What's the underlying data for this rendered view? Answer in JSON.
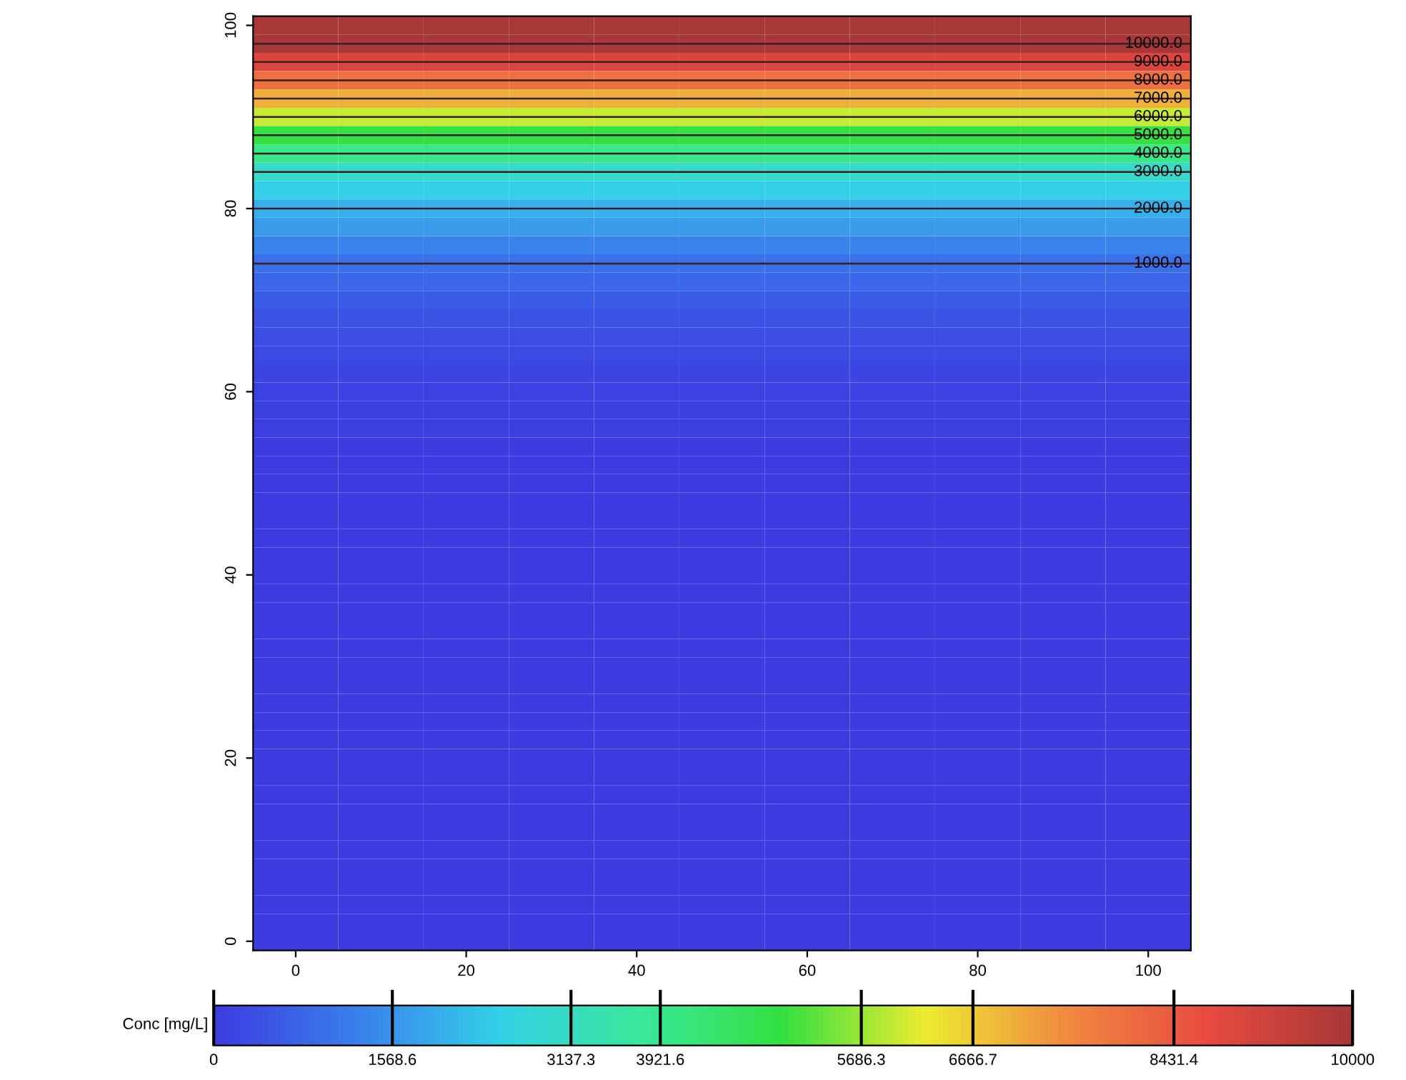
{
  "chart_data": {
    "type": "heatmap",
    "categories": [
      "0",
      null,
      "20",
      null,
      "40",
      null,
      "60",
      null,
      "80",
      null,
      "100"
    ],
    "y_categories": [
      "100",
      null,
      null,
      null,
      null,
      null,
      null,
      null,
      null,
      null,
      "80",
      null,
      null,
      null,
      null,
      null,
      null,
      null,
      null,
      null,
      "60",
      null,
      null,
      null,
      null,
      null,
      null,
      null,
      null,
      null,
      "40",
      null,
      null,
      null,
      null,
      null,
      null,
      null,
      null,
      null,
      "20",
      null,
      null,
      null,
      null,
      null,
      null,
      null,
      null,
      null,
      "0"
    ],
    "cells": [
      [
        10000,
        10000,
        10000,
        10000,
        10000,
        10000,
        10000,
        10000,
        10000,
        10000,
        10000
      ],
      [
        10000,
        10000,
        10000,
        10000,
        10000,
        10000,
        10000,
        10000,
        10000,
        10000,
        10000
      ],
      [
        9000,
        9000,
        9000,
        9000,
        9000,
        9000,
        9000,
        9000,
        9000,
        9000,
        9000
      ],
      [
        8000,
        8000,
        8000,
        8000,
        8000,
        8000,
        8000,
        8000,
        8000,
        8000,
        8000
      ],
      [
        7000,
        7000,
        7000,
        7000,
        7000,
        7000,
        7000,
        7000,
        7000,
        7000,
        7000
      ],
      [
        6000,
        6000,
        6000,
        6000,
        6000,
        6000,
        6000,
        6000,
        6000,
        6000,
        6000
      ],
      [
        5000,
        5000,
        5000,
        5000,
        5000,
        5000,
        5000,
        5000,
        5000,
        5000,
        5000
      ],
      [
        4000,
        4000,
        4000,
        4000,
        4000,
        4000,
        4000,
        4000,
        4000,
        4000,
        4000
      ],
      [
        3000,
        3000,
        3000,
        3000,
        3000,
        3000,
        3000,
        3000,
        3000,
        3000,
        3000
      ],
      [
        2500,
        2500,
        2500,
        2500,
        2500,
        2500,
        2500,
        2500,
        2500,
        2500,
        2500
      ],
      [
        2000,
        2000,
        2000,
        2000,
        2000,
        2000,
        2000,
        2000,
        2000,
        2000,
        2000
      ],
      [
        1700,
        1700,
        1700,
        1700,
        1700,
        1700,
        1700,
        1700,
        1700,
        1700,
        1700
      ],
      [
        1300,
        1300,
        1300,
        1300,
        1300,
        1300,
        1300,
        1300,
        1300,
        1300,
        1300
      ],
      [
        1000,
        1000,
        1000,
        1000,
        1000,
        1000,
        1000,
        1000,
        1000,
        1000,
        1000
      ],
      [
        800,
        800,
        800,
        800,
        800,
        800,
        800,
        800,
        800,
        800,
        800
      ],
      [
        600,
        600,
        600,
        600,
        600,
        600,
        600,
        600,
        600,
        600,
        600
      ],
      [
        450,
        450,
        450,
        450,
        450,
        450,
        450,
        450,
        450,
        450,
        450
      ],
      [
        350,
        350,
        350,
        350,
        350,
        350,
        350,
        350,
        350,
        350,
        350
      ],
      [
        250,
        250,
        250,
        250,
        250,
        250,
        250,
        250,
        250,
        250,
        250
      ],
      [
        180,
        180,
        180,
        180,
        180,
        180,
        180,
        180,
        180,
        180,
        180
      ],
      [
        120,
        120,
        120,
        120,
        120,
        120,
        120,
        120,
        120,
        120,
        120
      ],
      [
        80,
        80,
        80,
        80,
        80,
        80,
        80,
        80,
        80,
        80,
        80
      ],
      [
        40,
        40,
        40,
        40,
        40,
        40,
        40,
        40,
        40,
        40,
        40
      ],
      [
        20,
        20,
        20,
        20,
        20,
        20,
        20,
        20,
        20,
        20,
        20
      ],
      [
        0,
        0,
        0,
        0,
        0,
        0,
        0,
        0,
        0,
        0,
        0
      ],
      [
        0,
        0,
        0,
        0,
        0,
        0,
        0,
        0,
        0,
        0,
        0
      ],
      [
        0,
        0,
        0,
        0,
        0,
        0,
        0,
        0,
        0,
        0,
        0
      ],
      [
        0,
        0,
        0,
        0,
        0,
        0,
        0,
        0,
        0,
        0,
        0
      ],
      [
        0,
        0,
        0,
        0,
        0,
        0,
        0,
        0,
        0,
        0,
        0
      ],
      [
        0,
        0,
        0,
        0,
        0,
        0,
        0,
        0,
        0,
        0,
        0
      ],
      [
        0,
        0,
        0,
        0,
        0,
        0,
        0,
        0,
        0,
        0,
        0
      ],
      [
        0,
        0,
        0,
        0,
        0,
        0,
        0,
        0,
        0,
        0,
        0
      ],
      [
        0,
        0,
        0,
        0,
        0,
        0,
        0,
        0,
        0,
        0,
        0
      ],
      [
        0,
        0,
        0,
        0,
        0,
        0,
        0,
        0,
        0,
        0,
        0
      ],
      [
        0,
        0,
        0,
        0,
        0,
        0,
        0,
        0,
        0,
        0,
        0
      ],
      [
        0,
        0,
        0,
        0,
        0,
        0,
        0,
        0,
        0,
        0,
        0
      ],
      [
        0,
        0,
        0,
        0,
        0,
        0,
        0,
        0,
        0,
        0,
        0
      ],
      [
        0,
        0,
        0,
        0,
        0,
        0,
        0,
        0,
        0,
        0,
        0
      ],
      [
        0,
        0,
        0,
        0,
        0,
        0,
        0,
        0,
        0,
        0,
        0
      ],
      [
        0,
        0,
        0,
        0,
        0,
        0,
        0,
        0,
        0,
        0,
        0
      ],
      [
        0,
        0,
        0,
        0,
        0,
        0,
        0,
        0,
        0,
        0,
        0
      ],
      [
        0,
        0,
        0,
        0,
        0,
        0,
        0,
        0,
        0,
        0,
        0
      ],
      [
        0,
        0,
        0,
        0,
        0,
        0,
        0,
        0,
        0,
        0,
        0
      ],
      [
        0,
        0,
        0,
        0,
        0,
        0,
        0,
        0,
        0,
        0,
        0
      ],
      [
        0,
        0,
        0,
        0,
        0,
        0,
        0,
        0,
        0,
        0,
        0
      ],
      [
        0,
        0,
        0,
        0,
        0,
        0,
        0,
        0,
        0,
        0,
        0
      ],
      [
        0,
        0,
        0,
        0,
        0,
        0,
        0,
        0,
        0,
        0,
        0
      ],
      [
        0,
        0,
        0,
        0,
        0,
        0,
        0,
        0,
        0,
        0,
        0
      ],
      [
        0,
        0,
        0,
        0,
        0,
        0,
        0,
        0,
        0,
        0,
        0
      ],
      [
        0,
        0,
        0,
        0,
        0,
        0,
        0,
        0,
        0,
        0,
        0
      ],
      [
        0,
        0,
        0,
        0,
        0,
        0,
        0,
        0,
        0,
        0,
        0
      ]
    ],
    "cell_labels": [
      [
        null,
        null,
        null,
        null,
        null,
        null,
        null,
        null,
        null,
        null,
        null
      ],
      [
        null,
        null,
        null,
        null,
        null,
        null,
        null,
        null,
        null,
        null,
        "10000.0"
      ],
      [
        null,
        null,
        null,
        null,
        null,
        null,
        null,
        null,
        null,
        null,
        "9000.0"
      ],
      [
        null,
        null,
        null,
        null,
        null,
        null,
        null,
        null,
        null,
        null,
        "8000.0"
      ],
      [
        null,
        null,
        null,
        null,
        null,
        null,
        null,
        null,
        null,
        null,
        "7000.0"
      ],
      [
        null,
        null,
        null,
        null,
        null,
        null,
        null,
        null,
        null,
        null,
        "6000.0"
      ],
      [
        null,
        null,
        null,
        null,
        null,
        null,
        null,
        null,
        null,
        null,
        "5000.0"
      ],
      [
        null,
        null,
        null,
        null,
        null,
        null,
        null,
        null,
        null,
        null,
        "4000.0"
      ],
      [
        null,
        null,
        null,
        null,
        null,
        null,
        null,
        null,
        null,
        null,
        "3000.0"
      ],
      [
        null,
        null,
        null,
        null,
        null,
        null,
        null,
        null,
        null,
        null,
        null
      ],
      [
        null,
        null,
        null,
        null,
        null,
        null,
        null,
        null,
        null,
        null,
        "2000.0"
      ],
      [
        null,
        null,
        null,
        null,
        null,
        null,
        null,
        null,
        null,
        null,
        null
      ],
      [
        null,
        null,
        null,
        null,
        null,
        null,
        null,
        null,
        null,
        null,
        null
      ],
      [
        null,
        null,
        null,
        null,
        null,
        null,
        null,
        null,
        null,
        null,
        "1000.0"
      ]
    ],
    "clabel": "Conc [mg/L]",
    "clim": [
      0,
      10000
    ],
    "cticks": [
      0,
      1568.6,
      3137.3,
      3921.6,
      5686.3,
      6666.7,
      8431.4,
      10000
    ]
  }
}
